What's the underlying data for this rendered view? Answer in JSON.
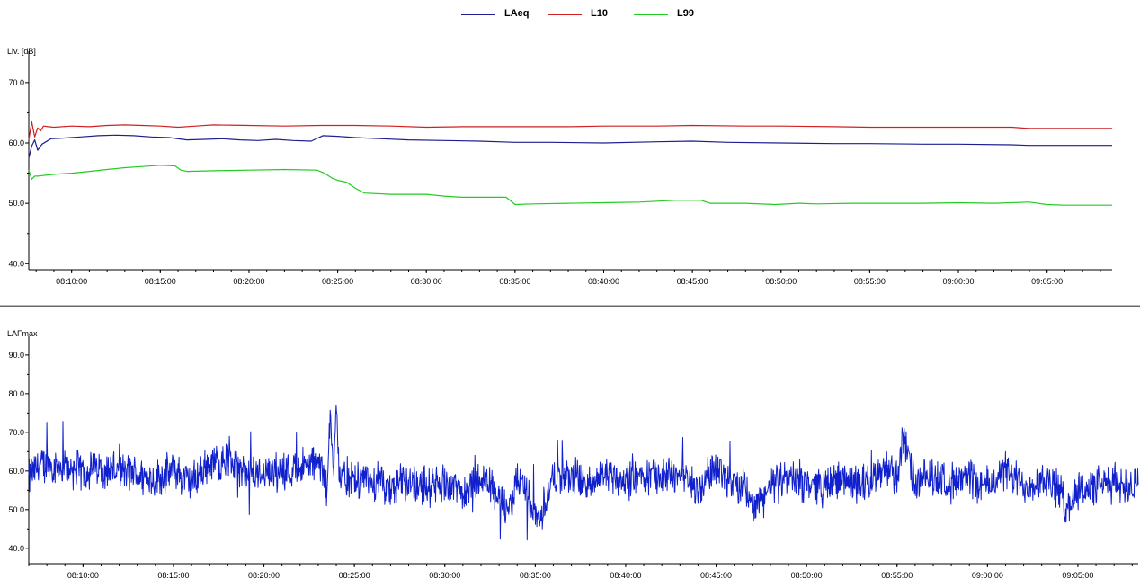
{
  "colors": {
    "LAeq": "#1f1f8f",
    "L10": "#d02020",
    "L99": "#22cc22",
    "LAFmax": "#1020cc",
    "axis": "#000000"
  },
  "chart_data": [
    {
      "type": "line",
      "ylabel": "Liv. [dB]",
      "ylim": [
        39.0,
        74.0
      ],
      "y_ticks": [
        "40.0",
        "50.0",
        "60.0",
        "70.0"
      ],
      "x_range": [
        "08:07:35",
        "09:08:40"
      ],
      "x_ticks": [
        "08:10:00",
        "08:15:00",
        "08:20:00",
        "08:25:00",
        "08:30:00",
        "08:35:00",
        "08:40:00",
        "08:45:00",
        "08:50:00",
        "08:55:00",
        "09:00:00",
        "09:05:00"
      ],
      "legend": "top-center",
      "series": [
        {
          "name": "LAeq",
          "color_key": "LAeq",
          "x": [
            "08:07:35",
            "08:07:45",
            "08:07:55",
            "08:08:05",
            "08:08:20",
            "08:08:50",
            "08:09:30",
            "08:10:30",
            "08:11:30",
            "08:12:30",
            "08:13:30",
            "08:14:30",
            "08:15:30",
            "08:16:30",
            "08:17:30",
            "08:18:30",
            "08:19:30",
            "08:20:30",
            "08:21:30",
            "08:22:30",
            "08:23:30",
            "08:24:10",
            "08:25:00",
            "08:26:00",
            "08:27:30",
            "08:29:00",
            "08:31:00",
            "08:33:00",
            "08:35:00",
            "08:37:00",
            "08:40:00",
            "08:43:00",
            "08:45:00",
            "08:47:00",
            "08:50:00",
            "08:53:00",
            "08:55:00",
            "08:58:00",
            "09:00:00",
            "09:03:00",
            "09:04:00",
            "09:06:00",
            "09:08:40"
          ],
          "values": [
            57.5,
            59.5,
            60.5,
            58.8,
            59.8,
            60.7,
            60.8,
            61.0,
            61.2,
            61.3,
            61.2,
            61.0,
            60.9,
            60.5,
            60.6,
            60.7,
            60.5,
            60.4,
            60.6,
            60.4,
            60.3,
            61.2,
            61.1,
            60.9,
            60.7,
            60.5,
            60.4,
            60.3,
            60.1,
            60.1,
            60.0,
            60.2,
            60.3,
            60.1,
            60.0,
            59.9,
            59.9,
            59.8,
            59.8,
            59.7,
            59.6,
            59.6,
            59.6
          ]
        },
        {
          "name": "L10",
          "color_key": "L10",
          "x": [
            "08:07:35",
            "08:07:45",
            "08:07:55",
            "08:08:05",
            "08:08:15",
            "08:08:25",
            "08:08:40",
            "08:09:00",
            "08:10:00",
            "08:11:00",
            "08:12:00",
            "08:13:00",
            "08:14:00",
            "08:15:00",
            "08:16:00",
            "08:17:00",
            "08:18:00",
            "08:20:00",
            "08:22:00",
            "08:24:00",
            "08:26:00",
            "08:28:00",
            "08:30:00",
            "08:32:00",
            "08:35:00",
            "08:38:00",
            "08:40:00",
            "08:43:00",
            "08:45:00",
            "08:48:00",
            "08:50:00",
            "08:53:00",
            "08:55:00",
            "08:58:00",
            "09:00:00",
            "09:03:00",
            "09:04:00",
            "09:06:00",
            "09:08:40"
          ],
          "values": [
            60.5,
            63.5,
            61.0,
            62.5,
            62.0,
            62.8,
            62.7,
            62.6,
            62.8,
            62.7,
            62.9,
            63.0,
            62.9,
            62.8,
            62.6,
            62.8,
            63.0,
            62.9,
            62.8,
            62.9,
            62.9,
            62.8,
            62.6,
            62.7,
            62.7,
            62.7,
            62.8,
            62.8,
            62.9,
            62.8,
            62.8,
            62.7,
            62.6,
            62.6,
            62.6,
            62.6,
            62.4,
            62.4,
            62.4
          ]
        },
        {
          "name": "L99",
          "color_key": "L99",
          "x": [
            "08:07:35",
            "08:07:45",
            "08:07:55",
            "08:08:05",
            "08:08:20",
            "08:09:00",
            "08:10:00",
            "08:11:00",
            "08:12:00",
            "08:13:00",
            "08:14:00",
            "08:15:00",
            "08:15:50",
            "08:16:10",
            "08:16:30",
            "08:18:00",
            "08:20:00",
            "08:22:00",
            "08:23:50",
            "08:24:15",
            "08:24:40",
            "08:25:00",
            "08:25:30",
            "08:26:00",
            "08:26:30",
            "08:28:00",
            "08:30:00",
            "08:31:00",
            "08:32:00",
            "08:34:30",
            "08:35:00",
            "08:36:00",
            "08:38:00",
            "08:40:00",
            "08:42:00",
            "08:44:00",
            "08:45:30",
            "08:46:00",
            "08:48:00",
            "08:49:40",
            "08:51:00",
            "08:52:00",
            "08:54:00",
            "08:56:00",
            "08:58:00",
            "09:00:00",
            "09:02:00",
            "09:04:00",
            "09:05:00",
            "09:06:00",
            "09:08:40"
          ],
          "values": [
            55.5,
            54.0,
            54.5,
            54.5,
            54.6,
            54.8,
            55.0,
            55.3,
            55.6,
            55.9,
            56.1,
            56.3,
            56.2,
            55.5,
            55.3,
            55.4,
            55.5,
            55.6,
            55.5,
            55.0,
            54.2,
            53.8,
            53.5,
            52.5,
            51.7,
            51.5,
            51.5,
            51.2,
            51.0,
            51.0,
            49.8,
            49.9,
            50.0,
            50.1,
            50.2,
            50.5,
            50.5,
            50.0,
            50.0,
            49.8,
            50.0,
            49.9,
            50.0,
            50.0,
            50.0,
            50.1,
            50.0,
            50.2,
            49.8,
            49.7,
            49.7
          ]
        }
      ]
    },
    {
      "type": "line",
      "ylabel": "LAFmax",
      "ylim": [
        36.0,
        93.0
      ],
      "y_ticks": [
        "40.0",
        "50.0",
        "60.0",
        "70.0",
        "80.0",
        "90.0"
      ],
      "x_range": [
        "08:07:00",
        "09:08:20"
      ],
      "x_ticks": [
        "08:10:00",
        "08:15:00",
        "08:20:00",
        "08:25:00",
        "08:30:00",
        "08:35:00",
        "08:40:00",
        "08:45:00",
        "08:50:00",
        "08:55:00",
        "09:00:00",
        "09:05:00"
      ],
      "series": [
        {
          "name": "LAFmax",
          "color_key": "LAFmax",
          "x": [
            "08:07:00",
            "08:07:30",
            "08:08:00",
            "08:09:00",
            "08:10:00",
            "08:11:00",
            "08:12:00",
            "08:13:00",
            "08:14:00",
            "08:15:00",
            "08:16:00",
            "08:17:00",
            "08:18:00",
            "08:19:00",
            "08:20:00",
            "08:21:00",
            "08:22:00",
            "08:23:00",
            "08:23:30",
            "08:23:40",
            "08:23:50",
            "08:24:00",
            "08:24:10",
            "08:25:00",
            "08:26:00",
            "08:27:00",
            "08:28:00",
            "08:29:00",
            "08:30:00",
            "08:31:00",
            "08:32:00",
            "08:33:00",
            "08:33:30",
            "08:34:00",
            "08:34:50",
            "08:35:10",
            "08:36:00",
            "08:37:00",
            "08:38:00",
            "08:39:00",
            "08:40:00",
            "08:41:00",
            "08:42:00",
            "08:43:00",
            "08:44:00",
            "08:45:00",
            "08:46:00",
            "08:46:40",
            "08:47:00",
            "08:48:00",
            "08:49:00",
            "08:50:00",
            "08:51:00",
            "08:52:00",
            "08:53:00",
            "08:54:00",
            "08:54:40",
            "08:55:00",
            "08:55:20",
            "08:56:00",
            "08:57:00",
            "08:58:00",
            "08:59:00",
            "09:00:00",
            "09:01:00",
            "09:02:00",
            "09:03:00",
            "09:04:00",
            "09:04:20",
            "09:05:00",
            "09:06:00",
            "09:07:00",
            "09:08:20"
          ],
          "values": [
            58,
            61,
            62,
            61,
            60,
            61,
            60,
            59,
            58,
            60,
            57,
            62,
            63,
            59,
            60,
            60,
            61,
            62,
            55,
            75,
            59,
            80,
            58,
            57,
            58,
            55,
            58,
            56,
            57,
            55,
            58,
            54,
            48,
            58,
            52,
            47,
            58,
            59,
            56,
            60,
            57,
            59,
            58,
            60,
            55,
            61,
            57,
            55,
            50,
            56,
            58,
            57,
            56,
            58,
            57,
            59,
            61,
            58,
            69,
            56,
            59,
            57,
            58,
            56,
            60,
            56,
            58,
            55,
            50,
            55,
            56,
            57,
            56
          ],
          "noise_amplitude": 6
        }
      ]
    }
  ]
}
